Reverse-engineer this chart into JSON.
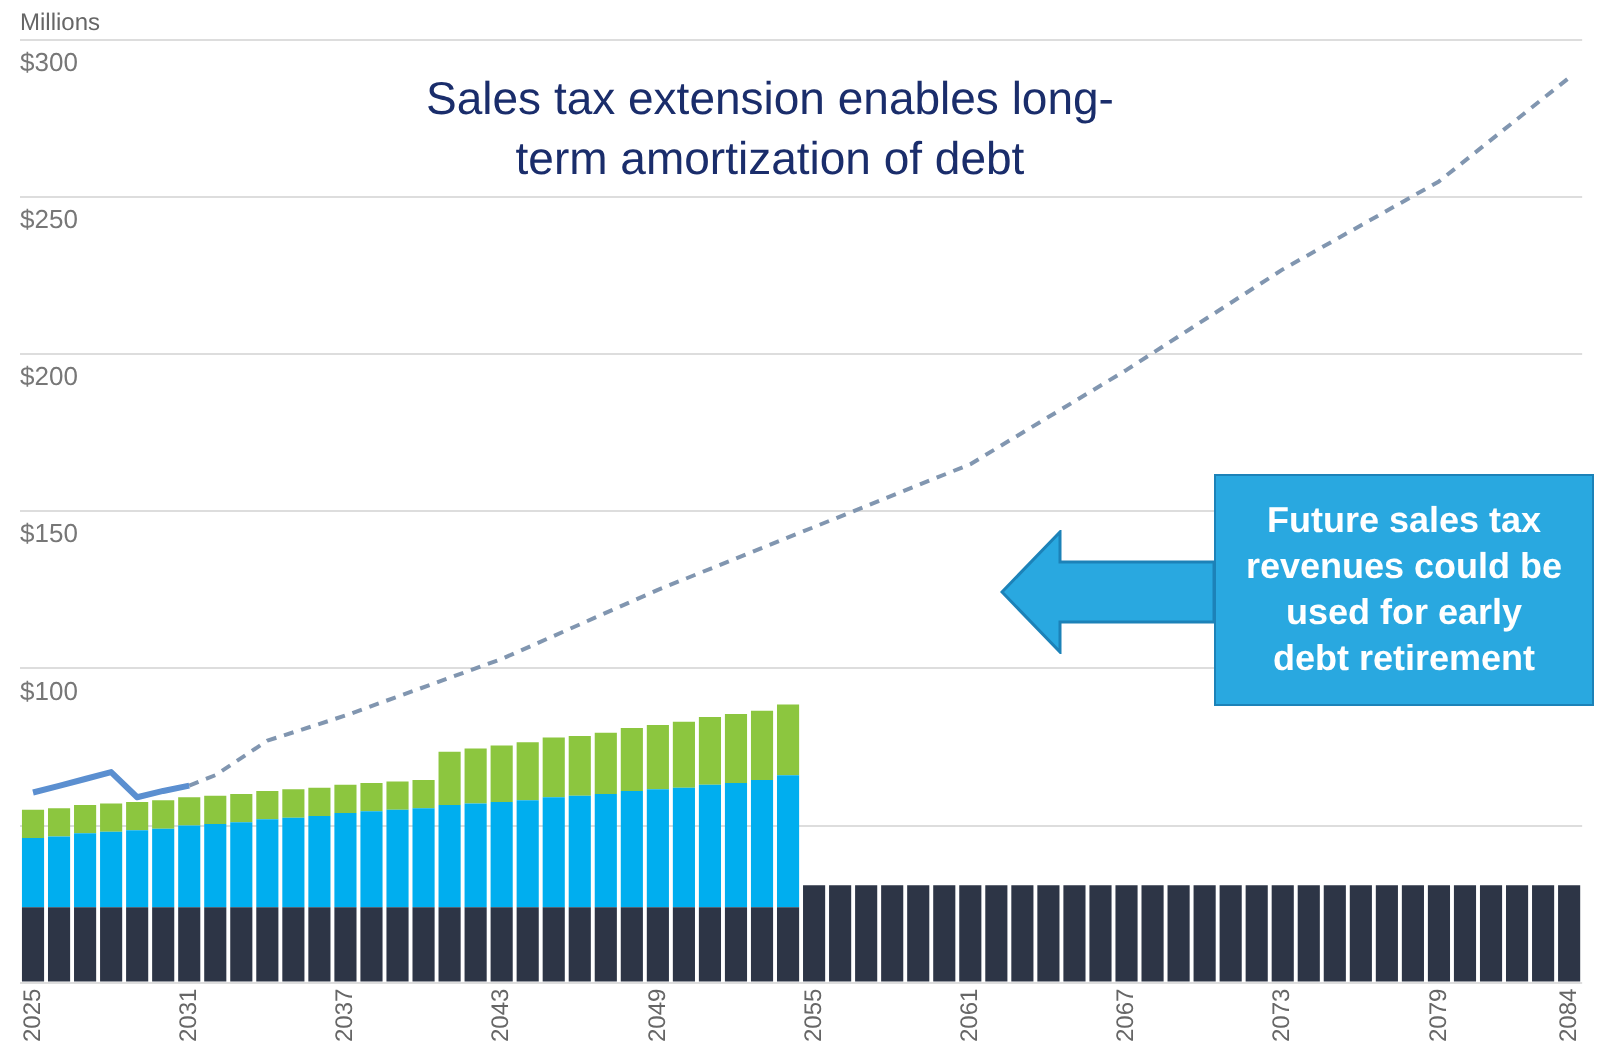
{
  "chart_data": {
    "type": "bar",
    "title": "Sales tax extension enables long-term amortization of debt",
    "ylabel": "Millions",
    "annotations": [
      "Future sales tax revenues could be used for early debt retirement"
    ],
    "categories": [
      "2025",
      null,
      null,
      null,
      null,
      null,
      "2031",
      null,
      null,
      null,
      null,
      null,
      "2037",
      null,
      null,
      null,
      null,
      null,
      "2043",
      null,
      null,
      null,
      null,
      null,
      "2049",
      null,
      null,
      null,
      null,
      null,
      "2055",
      null,
      null,
      null,
      null,
      null,
      "2061",
      null,
      null,
      null,
      null,
      null,
      "2067",
      null,
      null,
      null,
      null,
      null,
      "2073",
      null,
      null,
      null,
      null,
      null,
      "2079",
      null,
      null,
      null,
      null,
      "2084"
    ],
    "stacked": true,
    "ylim": [
      0,
      300
    ],
    "yticks": [
      {
        "value": 0,
        "label": null
      },
      {
        "value": 50,
        "label": null
      },
      {
        "value": 100,
        "label": "$100"
      },
      {
        "value": 150,
        "label": "$150"
      },
      {
        "value": 200,
        "label": "$200"
      },
      {
        "value": 250,
        "label": "$250"
      },
      {
        "value": 300,
        "label": "$300"
      }
    ],
    "grid": "y",
    "legend": false,
    "series": [
      {
        "color": "#2d3546",
        "values": [
          24,
          24,
          24,
          24,
          24,
          24,
          24,
          24,
          24,
          24,
          24,
          24,
          24,
          24,
          24,
          24,
          24,
          24,
          24,
          24,
          24,
          24,
          24,
          24,
          24,
          24,
          24,
          24,
          24,
          24,
          31,
          31,
          31,
          31,
          31,
          31,
          31,
          31,
          31,
          31,
          31,
          31,
          31,
          31,
          31,
          31,
          31,
          31,
          31,
          31,
          31,
          31,
          31,
          31,
          31,
          31,
          31,
          31,
          31,
          31
        ]
      },
      {
        "color": "#00aeef",
        "values": [
          22,
          22.5,
          23.5,
          24,
          24.5,
          25,
          26,
          26.5,
          27,
          28,
          28.5,
          29,
          30,
          30.5,
          31,
          31.5,
          32.5,
          33,
          33.5,
          34,
          35,
          35.5,
          36,
          37,
          37.5,
          38,
          39,
          39.5,
          40.5,
          42,
          null,
          null,
          null,
          null,
          null,
          null,
          null,
          null,
          null,
          null,
          null,
          null,
          null,
          null,
          null,
          null,
          null,
          null,
          null,
          null,
          null,
          null,
          null,
          null,
          null,
          null,
          null,
          null,
          null,
          null
        ]
      },
      {
        "color": "#8cc63f",
        "values": [
          9,
          9,
          9,
          9,
          9,
          9,
          9,
          9,
          9,
          9,
          9,
          9,
          9,
          9,
          9,
          9,
          17,
          17.5,
          18,
          18.5,
          19,
          19,
          19.5,
          20,
          20.5,
          21,
          21.5,
          22,
          22,
          22.5,
          null,
          null,
          null,
          null,
          null,
          null,
          null,
          null,
          null,
          null,
          null,
          null,
          null,
          null,
          null,
          null,
          null,
          null,
          null,
          null,
          null,
          null,
          null,
          null,
          null,
          null,
          null,
          null,
          null,
          null
        ]
      },
      {
        "type": "line",
        "color": "#5b8fd0",
        "line_style": "solid",
        "values": [
          60.5,
          62.6,
          64.8,
          67,
          59,
          61,
          62.7,
          null,
          null,
          null,
          null,
          null,
          null,
          null,
          null,
          null,
          null,
          null,
          null,
          null,
          null,
          null,
          null,
          null,
          null,
          null,
          null,
          null,
          null,
          null,
          null,
          null,
          null,
          null,
          null,
          null,
          null,
          null,
          null,
          null,
          null,
          null,
          null,
          null,
          null,
          null,
          null,
          null,
          null,
          null,
          null,
          null,
          null,
          null,
          null,
          null,
          null,
          null,
          null,
          null
        ]
      },
      {
        "type": "line",
        "color": "#8196b0",
        "line_style": "dashed",
        "values": [
          null,
          null,
          null,
          null,
          null,
          null,
          62.7,
          66,
          null,
          77,
          null,
          null,
          85,
          null,
          null,
          null,
          null,
          null,
          103,
          null,
          null,
          null,
          null,
          null,
          125,
          null,
          null,
          null,
          null,
          null,
          145,
          null,
          null,
          null,
          null,
          null,
          165,
          null,
          null,
          null,
          null,
          null,
          195,
          null,
          null,
          null,
          null,
          null,
          227,
          null,
          null,
          null,
          null,
          null,
          255,
          null,
          null,
          null,
          null,
          288
        ]
      }
    ]
  }
}
